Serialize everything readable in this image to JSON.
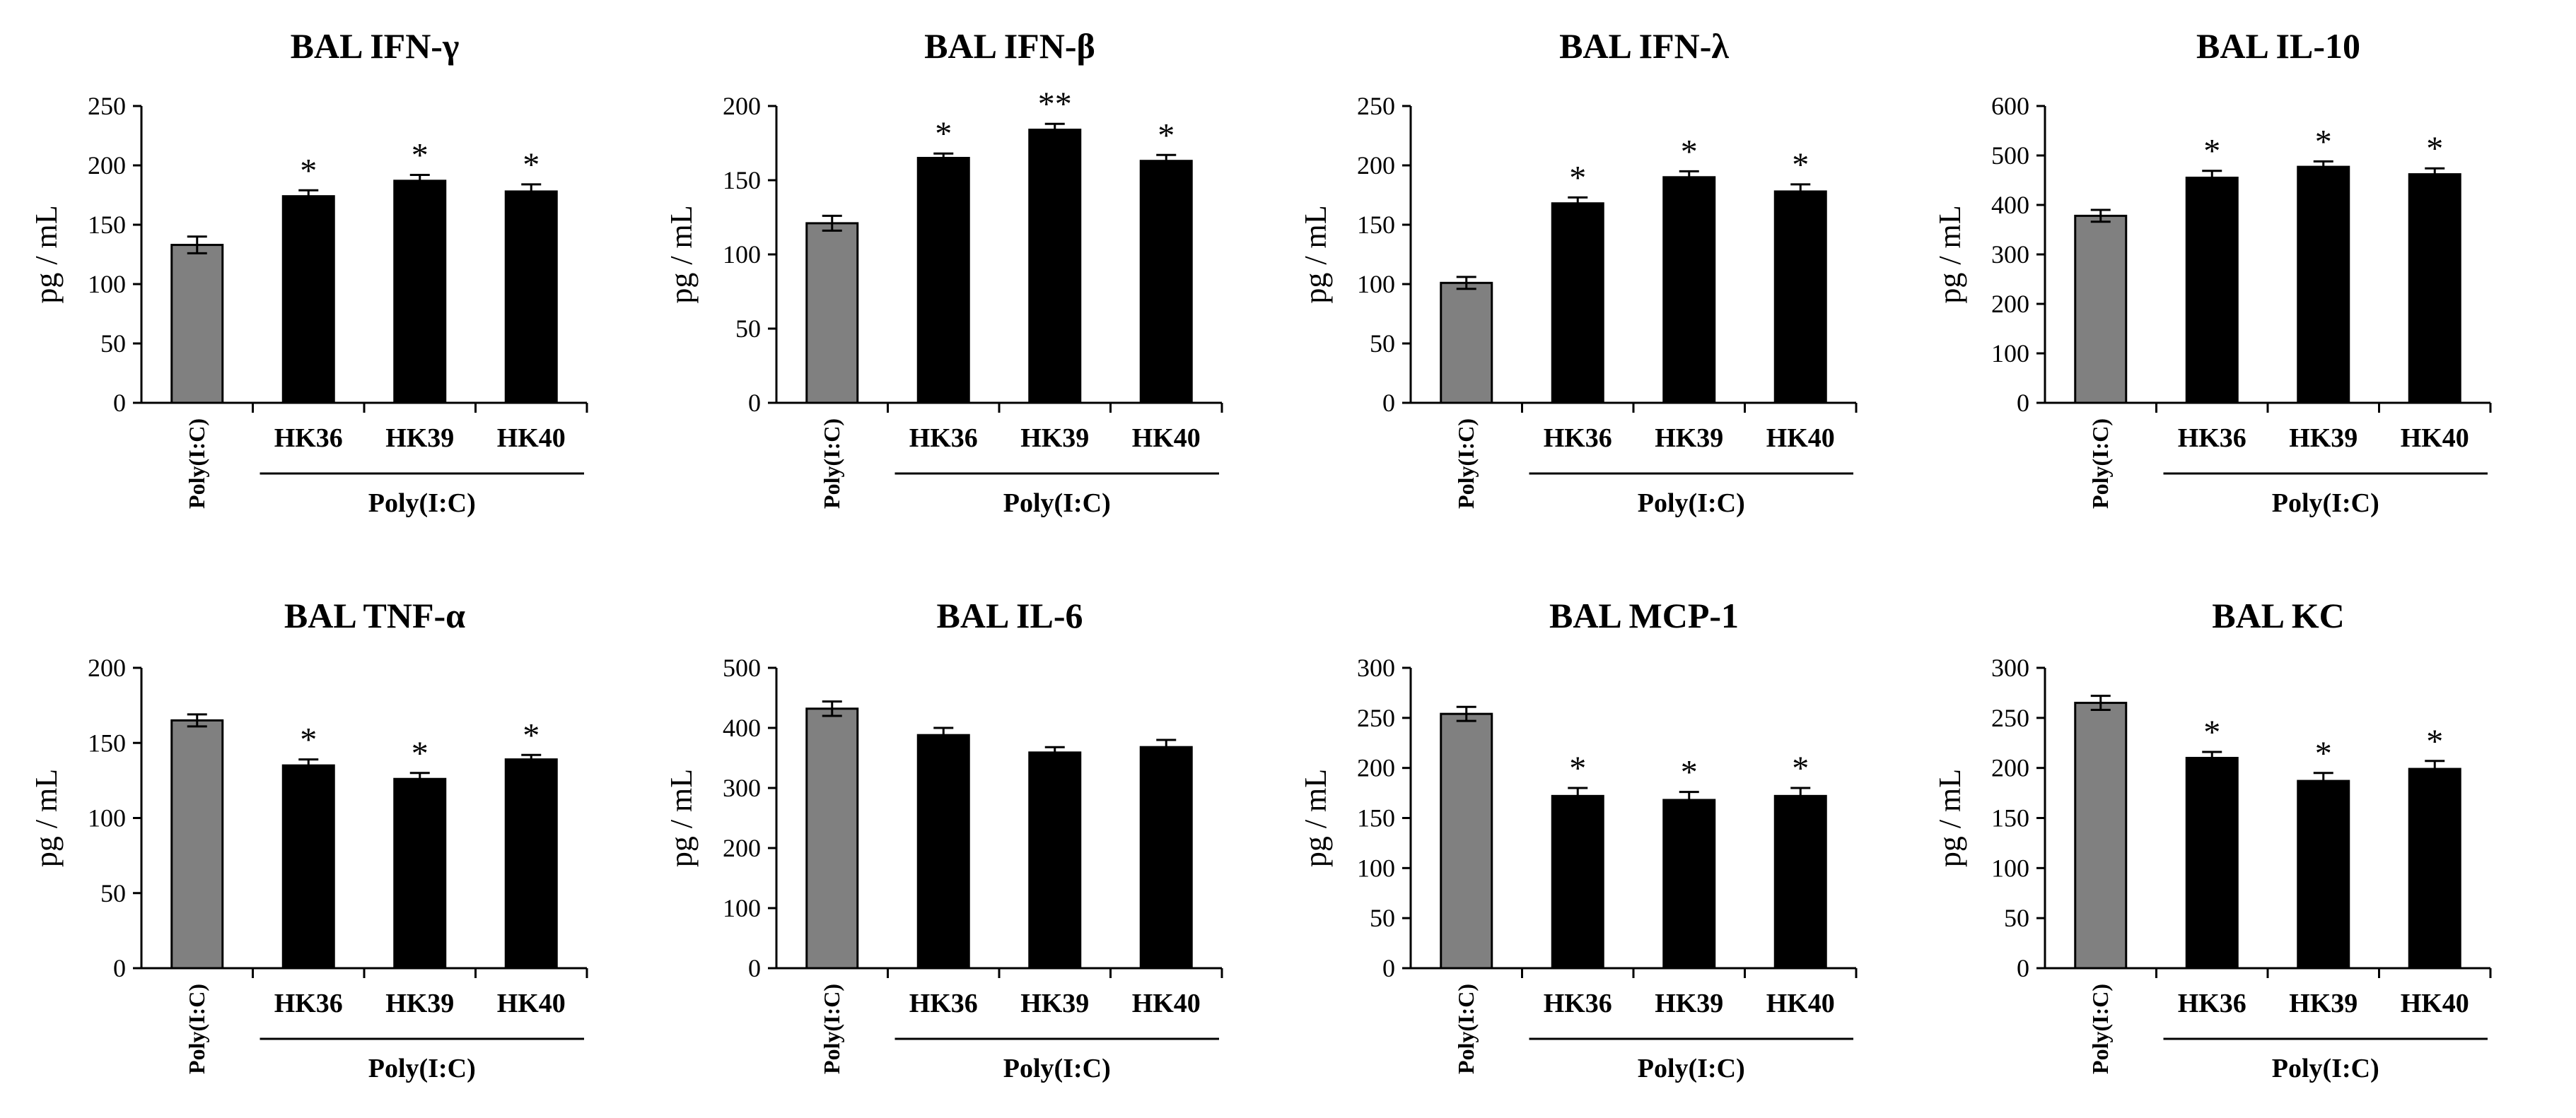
{
  "colors": {
    "control": "#808080",
    "treated": "#000000",
    "axis": "#000000"
  },
  "chart_data": [
    {
      "type": "bar",
      "title": "BAL IFN-γ",
      "ylabel": "pg / mL",
      "ylim": [
        0,
        250
      ],
      "yticks": [
        0,
        50,
        100,
        150,
        200,
        250
      ],
      "categories": [
        "Poly(I:C)",
        "HK36",
        "HK39",
        "HK40"
      ],
      "group_label": "Poly(I:C)",
      "values": [
        133,
        174,
        187,
        178
      ],
      "errors": [
        7,
        5,
        5,
        6
      ],
      "annotations": [
        "",
        "*",
        "*",
        "*"
      ]
    },
    {
      "type": "bar",
      "title": "BAL IFN-β",
      "ylabel": "pg / mL",
      "ylim": [
        0,
        200
      ],
      "yticks": [
        0,
        50,
        100,
        150,
        200
      ],
      "categories": [
        "Poly(I:C)",
        "HK36",
        "HK39",
        "HK40"
      ],
      "group_label": "Poly(I:C)",
      "values": [
        121,
        165,
        184,
        163
      ],
      "errors": [
        5,
        3,
        4,
        4
      ],
      "annotations": [
        "",
        "*",
        "**",
        "*"
      ]
    },
    {
      "type": "bar",
      "title": "BAL IFN-λ",
      "ylabel": "pg / mL",
      "ylim": [
        0,
        250
      ],
      "yticks": [
        0,
        50,
        100,
        150,
        200,
        250
      ],
      "categories": [
        "Poly(I:C)",
        "HK36",
        "HK39",
        "HK40"
      ],
      "group_label": "Poly(I:C)",
      "values": [
        101,
        168,
        190,
        178
      ],
      "errors": [
        5,
        5,
        5,
        6
      ],
      "annotations": [
        "",
        "*",
        "*",
        "*"
      ]
    },
    {
      "type": "bar",
      "title": "BAL IL-10",
      "ylabel": "pg / mL",
      "ylim": [
        0,
        600
      ],
      "yticks": [
        0,
        100,
        200,
        300,
        400,
        500,
        600
      ],
      "categories": [
        "Poly(I:C)",
        "HK36",
        "HK39",
        "HK40"
      ],
      "group_label": "Poly(I:C)",
      "values": [
        378,
        455,
        477,
        462
      ],
      "errors": [
        12,
        14,
        11,
        12
      ],
      "annotations": [
        "",
        "*",
        "*",
        "*"
      ]
    },
    {
      "type": "bar",
      "title": "BAL TNF-α",
      "ylabel": "pg / mL",
      "ylim": [
        0,
        200
      ],
      "yticks": [
        0,
        50,
        100,
        150,
        200
      ],
      "categories": [
        "Poly(I:C)",
        "HK36",
        "HK39",
        "HK40"
      ],
      "group_label": "Poly(I:C)",
      "values": [
        165,
        135,
        126,
        139
      ],
      "errors": [
        4,
        4,
        4,
        3
      ],
      "annotations": [
        "",
        "*",
        "*",
        "*"
      ]
    },
    {
      "type": "bar",
      "title": "BAL IL-6",
      "ylabel": "pg / mL",
      "ylim": [
        0,
        500
      ],
      "yticks": [
        0,
        100,
        200,
        300,
        400,
        500
      ],
      "categories": [
        "Poly(I:C)",
        "HK36",
        "HK39",
        "HK40"
      ],
      "group_label": "Poly(I:C)",
      "values": [
        432,
        388,
        359,
        368
      ],
      "errors": [
        12,
        12,
        9,
        12
      ],
      "annotations": [
        "",
        "",
        "",
        ""
      ]
    },
    {
      "type": "bar",
      "title": "BAL MCP-1",
      "ylabel": "pg / mL",
      "ylim": [
        0,
        300
      ],
      "yticks": [
        0,
        50,
        100,
        150,
        200,
        250,
        300
      ],
      "categories": [
        "Poly(I:C)",
        "HK36",
        "HK39",
        "HK40"
      ],
      "group_label": "Poly(I:C)",
      "values": [
        254,
        172,
        168,
        172
      ],
      "errors": [
        7,
        8,
        8,
        8
      ],
      "annotations": [
        "",
        "*",
        "*",
        "*"
      ]
    },
    {
      "type": "bar",
      "title": "BAL KC",
      "ylabel": "pg / mL",
      "ylim": [
        0,
        300
      ],
      "yticks": [
        0,
        50,
        100,
        150,
        200,
        250,
        300
      ],
      "categories": [
        "Poly(I:C)",
        "HK36",
        "HK39",
        "HK40"
      ],
      "group_label": "Poly(I:C)",
      "values": [
        265,
        210,
        187,
        199
      ],
      "errors": [
        7,
        6,
        8,
        8
      ],
      "annotations": [
        "",
        "*",
        "*",
        "*"
      ]
    }
  ]
}
